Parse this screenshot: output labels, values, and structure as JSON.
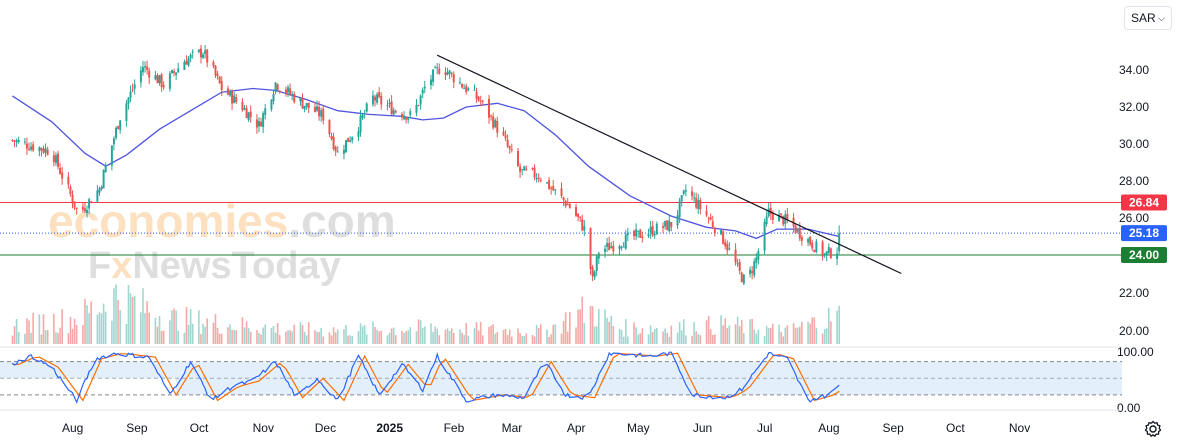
{
  "currency_select": {
    "value": "SAR",
    "icon": "chevron-down-icon"
  },
  "settings": {
    "icon": "gear-icon"
  },
  "watermark": {
    "line1a": "economies",
    "line1b": ".com",
    "line2a": "F",
    "line2b": "x",
    "line2c": "NewsToday"
  },
  "colors": {
    "up": "#26a69a",
    "down": "#ef5350",
    "ma": "#4f55e0",
    "stoch_k": "#2962ff",
    "stoch_d": "#ff6d00",
    "resistance": "#f23645",
    "support": "#1b7e32",
    "last": "#2962ff",
    "trend": "#131722"
  },
  "chart_data": [
    {
      "type": "candlestick",
      "title": "",
      "y_tick_labels": [
        "34.00",
        "32.00",
        "30.00",
        "28.00",
        "26.00",
        "22.00",
        "20.00"
      ],
      "x_tick_labels": [
        "Aug",
        "Sep",
        "Oct",
        "Nov",
        "Dec",
        "2025",
        "Feb",
        "Mar",
        "Apr",
        "May",
        "Jun",
        "Jul",
        "Aug",
        "Sep",
        "Oct",
        "Nov"
      ],
      "ylim": [
        19.4,
        35.8
      ],
      "grid": false,
      "levels": [
        {
          "name": "resistance",
          "value": 26.84,
          "label": "26.84",
          "style": "solid"
        },
        {
          "name": "last-price",
          "value": 25.18,
          "label": "25.18",
          "style": "dotted"
        },
        {
          "name": "support",
          "value": 24.0,
          "label": "24.00",
          "style": "solid"
        }
      ],
      "trendline": {
        "from": {
          "date": "2025-01-22",
          "value": 34.8
        },
        "to": {
          "date": "2025-09-03",
          "value": 23.0
        }
      },
      "close_anchors": [
        [
          "2024-07-01",
          30.2
        ],
        [
          "2024-07-20",
          29.6
        ],
        [
          "2024-08-02",
          26.2
        ],
        [
          "2024-08-12",
          27.6
        ],
        [
          "2024-08-22",
          31.5
        ],
        [
          "2024-09-02",
          34.2
        ],
        [
          "2024-09-12",
          33.2
        ],
        [
          "2024-09-22",
          34.5
        ],
        [
          "2024-10-01",
          35.0
        ],
        [
          "2024-10-10",
          33.0
        ],
        [
          "2024-10-20",
          32.0
        ],
        [
          "2024-10-28",
          31.0
        ],
        [
          "2024-11-05",
          33.3
        ],
        [
          "2024-11-18",
          32.2
        ],
        [
          "2024-11-28",
          31.5
        ],
        [
          "2024-12-05",
          29.5
        ],
        [
          "2024-12-15",
          31.0
        ],
        [
          "2024-12-22",
          32.5
        ],
        [
          "2025-01-02",
          31.8
        ],
        [
          "2025-01-10",
          31.5
        ],
        [
          "2025-01-17",
          33.3
        ],
        [
          "2025-01-24",
          34.2
        ],
        [
          "2025-02-03",
          33.2
        ],
        [
          "2025-02-12",
          32.3
        ],
        [
          "2025-02-22",
          30.5
        ],
        [
          "2025-03-03",
          28.5
        ],
        [
          "2025-03-12",
          28.3
        ],
        [
          "2025-03-20",
          27.4
        ],
        [
          "2025-03-28",
          26.5
        ],
        [
          "2025-04-03",
          25.4
        ],
        [
          "2025-04-07",
          22.6
        ],
        [
          "2025-04-10",
          24.2
        ],
        [
          "2025-04-22",
          24.8
        ],
        [
          "2025-05-05",
          25.3
        ],
        [
          "2025-05-16",
          25.7
        ],
        [
          "2025-05-22",
          27.5
        ],
        [
          "2025-06-02",
          26.0
        ],
        [
          "2025-06-10",
          24.7
        ],
        [
          "2025-06-17",
          23.0
        ],
        [
          "2025-06-20",
          22.5
        ],
        [
          "2025-06-25",
          23.8
        ],
        [
          "2025-07-01",
          26.3
        ],
        [
          "2025-07-10",
          25.8
        ],
        [
          "2025-07-20",
          24.8
        ],
        [
          "2025-07-28",
          24.0
        ],
        [
          "2025-08-03",
          24.3
        ],
        [
          "2025-08-04",
          25.18
        ]
      ],
      "moving_average": [
        [
          "2024-07-01",
          32.6
        ],
        [
          "2024-07-20",
          31.2
        ],
        [
          "2024-08-05",
          29.5
        ],
        [
          "2024-08-15",
          28.8
        ],
        [
          "2024-08-25",
          29.4
        ],
        [
          "2024-09-10",
          30.8
        ],
        [
          "2024-09-25",
          31.8
        ],
        [
          "2024-10-10",
          32.8
        ],
        [
          "2024-10-25",
          33.0
        ],
        [
          "2024-11-05",
          32.9
        ],
        [
          "2024-11-20",
          32.4
        ],
        [
          "2024-12-05",
          31.8
        ],
        [
          "2024-12-20",
          31.6
        ],
        [
          "2025-01-05",
          31.5
        ],
        [
          "2025-01-15",
          31.3
        ],
        [
          "2025-01-25",
          31.4
        ],
        [
          "2025-02-05",
          32.0
        ],
        [
          "2025-02-20",
          32.2
        ],
        [
          "2025-03-05",
          31.8
        ],
        [
          "2025-03-20",
          30.5
        ],
        [
          "2025-04-05",
          28.8
        ],
        [
          "2025-04-25",
          27.2
        ],
        [
          "2025-05-15",
          26.1
        ],
        [
          "2025-06-01",
          25.5
        ],
        [
          "2025-06-15",
          25.3
        ],
        [
          "2025-06-25",
          24.9
        ],
        [
          "2025-07-05",
          25.4
        ],
        [
          "2025-07-20",
          25.4
        ],
        [
          "2025-08-04",
          25.0
        ]
      ]
    },
    {
      "type": "bar",
      "title": "",
      "series": [
        {
          "values": "volume"
        }
      ],
      "volume_anchors": [
        [
          "2024-07-01",
          0.28
        ],
        [
          "2024-08-01",
          0.4
        ],
        [
          "2024-08-20",
          0.75
        ],
        [
          "2024-09-15",
          0.4
        ],
        [
          "2024-10-15",
          0.3
        ],
        [
          "2024-11-15",
          0.22
        ],
        [
          "2024-12-15",
          0.22
        ],
        [
          "2025-01-15",
          0.25
        ],
        [
          "2025-02-15",
          0.22
        ],
        [
          "2025-03-15",
          0.2
        ],
        [
          "2025-04-05",
          0.55
        ],
        [
          "2025-04-20",
          0.25
        ],
        [
          "2025-05-15",
          0.25
        ],
        [
          "2025-06-10",
          0.3
        ],
        [
          "2025-07-10",
          0.2
        ],
        [
          "2025-08-04",
          0.45
        ]
      ]
    },
    {
      "type": "line",
      "title": "",
      "y_tick_labels": [
        "100.00",
        "0.00"
      ],
      "ylim": [
        0,
        100
      ],
      "bands": [
        80,
        50,
        20
      ],
      "stoch_anchors": [
        [
          "2024-07-01",
          75
        ],
        [
          "2024-07-10",
          90
        ],
        [
          "2024-07-20",
          70
        ],
        [
          "2024-08-01",
          10
        ],
        [
          "2024-08-10",
          85
        ],
        [
          "2024-08-20",
          95
        ],
        [
          "2024-09-05",
          88
        ],
        [
          "2024-09-15",
          20
        ],
        [
          "2024-09-25",
          80
        ],
        [
          "2024-10-05",
          10
        ],
        [
          "2024-10-15",
          35
        ],
        [
          "2024-10-25",
          45
        ],
        [
          "2024-11-05",
          80
        ],
        [
          "2024-11-15",
          15
        ],
        [
          "2024-11-25",
          50
        ],
        [
          "2024-12-05",
          10
        ],
        [
          "2024-12-15",
          90
        ],
        [
          "2024-12-25",
          20
        ],
        [
          "2025-01-05",
          75
        ],
        [
          "2025-01-15",
          30
        ],
        [
          "2025-01-22",
          90
        ],
        [
          "2025-02-05",
          10
        ],
        [
          "2025-02-20",
          20
        ],
        [
          "2025-03-05",
          15
        ],
        [
          "2025-03-15",
          80
        ],
        [
          "2025-03-25",
          20
        ],
        [
          "2025-04-05",
          15
        ],
        [
          "2025-04-15",
          95
        ],
        [
          "2025-05-05",
          90
        ],
        [
          "2025-05-15",
          95
        ],
        [
          "2025-05-25",
          20
        ],
        [
          "2025-06-10",
          15
        ],
        [
          "2025-06-18",
          30
        ],
        [
          "2025-07-01",
          95
        ],
        [
          "2025-07-10",
          85
        ],
        [
          "2025-07-20",
          10
        ],
        [
          "2025-07-30",
          20
        ],
        [
          "2025-08-04",
          38
        ]
      ]
    }
  ]
}
